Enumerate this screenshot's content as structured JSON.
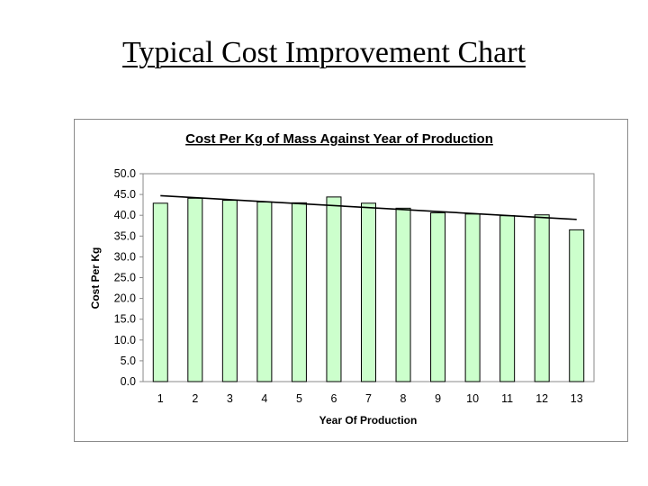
{
  "slide": {
    "title": "Typical Cost Improvement Chart"
  },
  "chart_data": {
    "type": "bar",
    "title": "Cost Per Kg of Mass Against Year of Production",
    "xlabel": "Year Of Production",
    "ylabel": "Cost Per Kg",
    "categories": [
      "1",
      "2",
      "3",
      "4",
      "5",
      "6",
      "7",
      "8",
      "9",
      "10",
      "11",
      "12",
      "13"
    ],
    "values": [
      42.9,
      44.1,
      43.6,
      43.2,
      43.0,
      44.4,
      42.9,
      41.7,
      40.6,
      40.3,
      39.9,
      40.1,
      36.5
    ],
    "trendline": {
      "type": "linear",
      "start": 44.7,
      "end": 39.0
    },
    "ylim": [
      0,
      50
    ],
    "yticks": [
      "0.0",
      "5.0",
      "10.0",
      "15.0",
      "20.0",
      "25.0",
      "30.0",
      "35.0",
      "40.0",
      "45.0",
      "50.0"
    ],
    "bar_color": "#ccffcc",
    "grid": false,
    "legend": "none"
  }
}
